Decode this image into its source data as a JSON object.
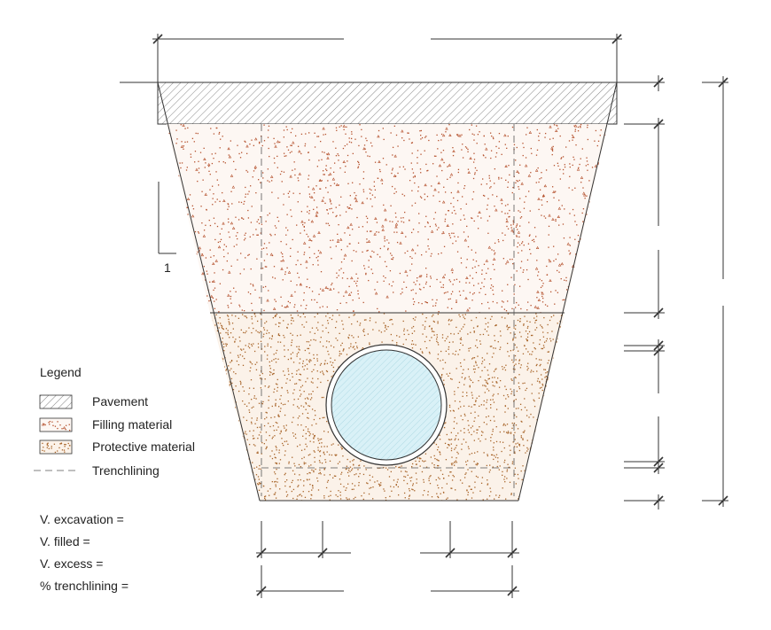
{
  "legend": {
    "title": "Legend",
    "items": [
      {
        "id": "pavement",
        "label": "Pavement"
      },
      {
        "id": "filling",
        "label": "Filling material"
      },
      {
        "id": "protective",
        "label": "Protective material"
      },
      {
        "id": "trenchlining",
        "label": "Trenchlining"
      }
    ]
  },
  "slope_label": "1",
  "volumes": {
    "excavation": "V. excavation =",
    "filled": "V. filled =",
    "excess": "V. excess =",
    "trenchlining": "%  trenchlining ="
  },
  "colors": {
    "line": "#333333",
    "filling_dot": "#b5522e",
    "protective_dot": "#a8652a",
    "protective_bg": "#fbf2e9",
    "filling_bg": "#fdf7f3",
    "pipe_fill": "#d9f1f7",
    "pipe_hatch": "#8fc9d8"
  }
}
